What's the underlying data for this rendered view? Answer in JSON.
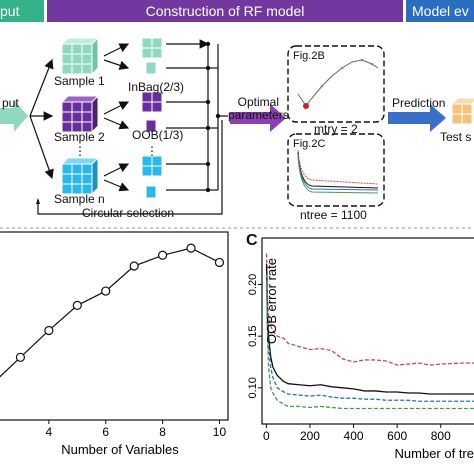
{
  "header": {
    "left_label": "put",
    "center_label": "Construction of RF model",
    "right_label": "Model ev"
  },
  "top_panel": {
    "input_label": "put",
    "samples": [
      "Sample 1",
      "Sample 2",
      "Sample n"
    ],
    "inbag_label": "InBag(2/3)",
    "oob_label": "OOB(1/3)",
    "dots": "⋮",
    "circular_label": "Circular selection",
    "optimal_label": "Optimal\nparameters",
    "prediction_label": "Prediction",
    "test_label": "Test s",
    "figB_label": "Fig.2B",
    "figC_label": "Fig.2C",
    "mtry_label": "mtry = 2",
    "ntree_label": "ntree = 1100",
    "colors": {
      "cube_green": "#8fd9c0",
      "cube_purple": "#6a2d9c",
      "cube_cyan": "#2ab8e8",
      "arrow_purple": "#8b3fb0",
      "arrow_blue": "#3a6fc8",
      "test_orange": "#f5c27a"
    }
  },
  "panel_c_letter": "C",
  "chart_data": [
    {
      "type": "line",
      "panel": "B (partial)",
      "xlabel": "Number of Variables",
      "ylabel": "",
      "x": [
        2,
        3,
        4,
        5,
        6,
        7,
        8,
        9,
        10
      ],
      "y": [
        0.2,
        0.35,
        0.5,
        0.64,
        0.72,
        0.86,
        0.92,
        0.96,
        0.88
      ],
      "xticks": [
        4,
        6,
        8,
        10
      ],
      "xlim": [
        2,
        10.3
      ],
      "ylim": [
        0,
        1.05
      ],
      "marker": "open-circle"
    },
    {
      "type": "line",
      "panel": "C",
      "xlabel": "Number of tre",
      "ylabel": "OOB error rate",
      "xticks": [
        0,
        200,
        400,
        600,
        800
      ],
      "yticks": [
        0.1,
        0.15,
        0.2
      ],
      "xlim": [
        -20,
        980
      ],
      "ylim": [
        0.065,
        0.245
      ],
      "series": [
        {
          "color": "#c0504d",
          "dash": "4,2",
          "x": [
            1,
            5,
            10,
            20,
            30,
            50,
            80,
            100,
            150,
            200,
            250,
            300,
            350,
            400,
            450,
            500,
            550,
            600,
            650,
            700,
            750,
            800,
            900,
            980
          ],
          "y": [
            0.23,
            0.19,
            0.17,
            0.16,
            0.155,
            0.15,
            0.148,
            0.143,
            0.14,
            0.137,
            0.138,
            0.136,
            0.128,
            0.125,
            0.127,
            0.127,
            0.126,
            0.122,
            0.123,
            0.124,
            0.122,
            0.123,
            0.124,
            0.124
          ]
        },
        {
          "color": "#111111",
          "dash": "",
          "x": [
            1,
            5,
            10,
            20,
            30,
            50,
            80,
            100,
            150,
            200,
            250,
            300,
            350,
            400,
            450,
            500,
            550,
            600,
            650,
            700,
            750,
            800,
            900,
            980
          ],
          "y": [
            0.22,
            0.17,
            0.15,
            0.13,
            0.12,
            0.112,
            0.106,
            0.104,
            0.103,
            0.102,
            0.103,
            0.101,
            0.1,
            0.099,
            0.097,
            0.097,
            0.096,
            0.096,
            0.095,
            0.095,
            0.094,
            0.094,
            0.094,
            0.094
          ]
        },
        {
          "color": "#2e6db4",
          "dash": "4,2",
          "x": [
            1,
            5,
            10,
            20,
            30,
            50,
            80,
            100,
            150,
            200,
            250,
            300,
            350,
            400,
            450,
            500,
            550,
            600,
            650,
            700,
            750,
            800,
            900,
            980
          ],
          "y": [
            0.21,
            0.16,
            0.14,
            0.12,
            0.11,
            0.1,
            0.096,
            0.094,
            0.093,
            0.092,
            0.093,
            0.091,
            0.09,
            0.09,
            0.089,
            0.089,
            0.088,
            0.088,
            0.088,
            0.087,
            0.087,
            0.087,
            0.087,
            0.087
          ]
        },
        {
          "color": "#4a9a4a",
          "dash": "4,2",
          "x": [
            1,
            5,
            10,
            20,
            30,
            50,
            80,
            100,
            150,
            200,
            250,
            300,
            350,
            400,
            450,
            500,
            550,
            600,
            650,
            700,
            750,
            800,
            900,
            980
          ],
          "y": [
            0.2,
            0.15,
            0.12,
            0.1,
            0.095,
            0.088,
            0.084,
            0.082,
            0.082,
            0.081,
            0.082,
            0.081,
            0.08,
            0.08,
            0.08,
            0.08,
            0.08,
            0.08,
            0.08,
            0.08,
            0.08,
            0.08,
            0.08,
            0.08
          ]
        }
      ]
    }
  ]
}
